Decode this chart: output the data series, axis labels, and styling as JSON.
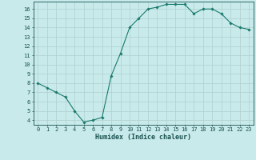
{
  "x": [
    0,
    1,
    2,
    3,
    4,
    5,
    6,
    7,
    8,
    9,
    10,
    11,
    12,
    13,
    14,
    15,
    16,
    17,
    18,
    19,
    20,
    21,
    22,
    23
  ],
  "y": [
    8.0,
    7.5,
    7.0,
    6.5,
    5.0,
    3.8,
    4.0,
    4.3,
    8.8,
    11.2,
    14.0,
    15.0,
    16.0,
    16.2,
    16.5,
    16.5,
    16.5,
    15.5,
    16.0,
    16.0,
    15.5,
    14.5,
    14.0,
    13.8
  ],
  "xlabel": "Humidex (Indice chaleur)",
  "xlim": [
    -0.5,
    23.5
  ],
  "ylim": [
    3.5,
    16.8
  ],
  "yticks": [
    4,
    5,
    6,
    7,
    8,
    9,
    10,
    11,
    12,
    13,
    14,
    15,
    16
  ],
  "xticks": [
    0,
    1,
    2,
    3,
    4,
    5,
    6,
    7,
    8,
    9,
    10,
    11,
    12,
    13,
    14,
    15,
    16,
    17,
    18,
    19,
    20,
    21,
    22,
    23
  ],
  "line_color": "#1a7a6e",
  "marker": "D",
  "marker_size": 1.8,
  "bg_color": "#c8eaea",
  "grid_color": "#b0d0d0",
  "font_color": "#1a5050",
  "tick_fontsize": 5.0,
  "xlabel_fontsize": 6.0
}
